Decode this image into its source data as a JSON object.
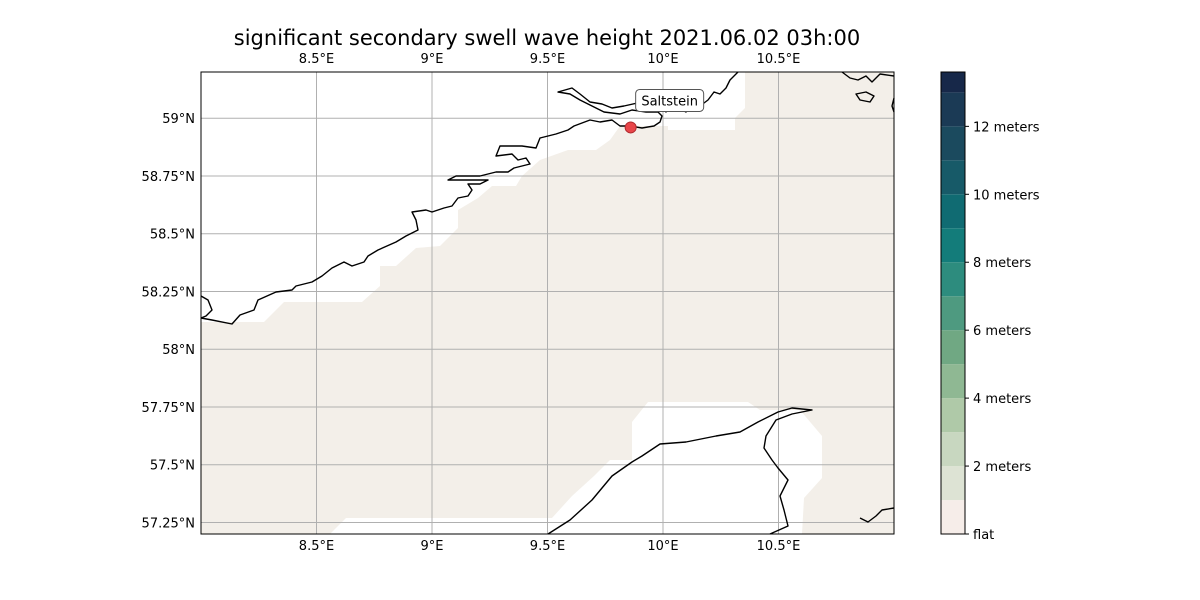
{
  "title": "significant secondary swell wave height 2021.06.02 03h:00",
  "map": {
    "lon_range": [
      8.0,
      11.0
    ],
    "lat_range": [
      57.2,
      59.2
    ],
    "top_lon_ticks": [
      "8.5°E",
      "9°E",
      "9.5°E",
      "10°E",
      "10.5°E"
    ],
    "bottom_lon_ticks": [
      "8.5°E",
      "9°E",
      "9.5°E",
      "10°E",
      "10.5°E"
    ],
    "lon_tick_values": [
      8.5,
      9.0,
      9.5,
      10.0,
      10.5
    ],
    "lat_ticks": [
      "59°N",
      "58.75°N",
      "58.5°N",
      "58.25°N",
      "58°N",
      "57.75°N",
      "57.5°N",
      "57.25°N"
    ],
    "lat_tick_values": [
      59.0,
      58.75,
      58.5,
      58.25,
      58.0,
      57.75,
      57.5,
      57.25
    ],
    "grid": true,
    "sea_color": "#f3efe9",
    "land_color": "#ffffff",
    "coastline_color": "#000000"
  },
  "location": {
    "name": "Saltstein",
    "lon": 9.86,
    "lat": 58.96,
    "marker_color": "#e8464a"
  },
  "colorbar": {
    "tick_labels": [
      "flat",
      "2 meters",
      "4 meters",
      "6 meters",
      "8 meters",
      "10 meters",
      "12 meters"
    ],
    "tick_values": [
      0,
      2,
      4,
      6,
      8,
      10,
      12
    ],
    "range": [
      0,
      13.6
    ],
    "levels": [
      {
        "from": 0.0,
        "to": 1.0,
        "color": "#f6ede9"
      },
      {
        "from": 1.0,
        "to": 2.0,
        "color": "#dde3d4"
      },
      {
        "from": 2.0,
        "to": 3.0,
        "color": "#c8d7c0"
      },
      {
        "from": 3.0,
        "to": 4.0,
        "color": "#afc9a8"
      },
      {
        "from": 4.0,
        "to": 5.0,
        "color": "#8fb893"
      },
      {
        "from": 5.0,
        "to": 6.0,
        "color": "#70a883"
      },
      {
        "from": 6.0,
        "to": 7.0,
        "color": "#4e9a80"
      },
      {
        "from": 7.0,
        "to": 8.0,
        "color": "#2d8c7e"
      },
      {
        "from": 8.0,
        "to": 9.0,
        "color": "#137c7a"
      },
      {
        "from": 9.0,
        "to": 10.0,
        "color": "#106b72"
      },
      {
        "from": 10.0,
        "to": 11.0,
        "color": "#175a68"
      },
      {
        "from": 11.0,
        "to": 12.0,
        "color": "#1b4a5e"
      },
      {
        "from": 12.0,
        "to": 13.0,
        "color": "#1b3a55"
      },
      {
        "from": 13.0,
        "to": 13.6,
        "color": "#172849"
      }
    ]
  }
}
